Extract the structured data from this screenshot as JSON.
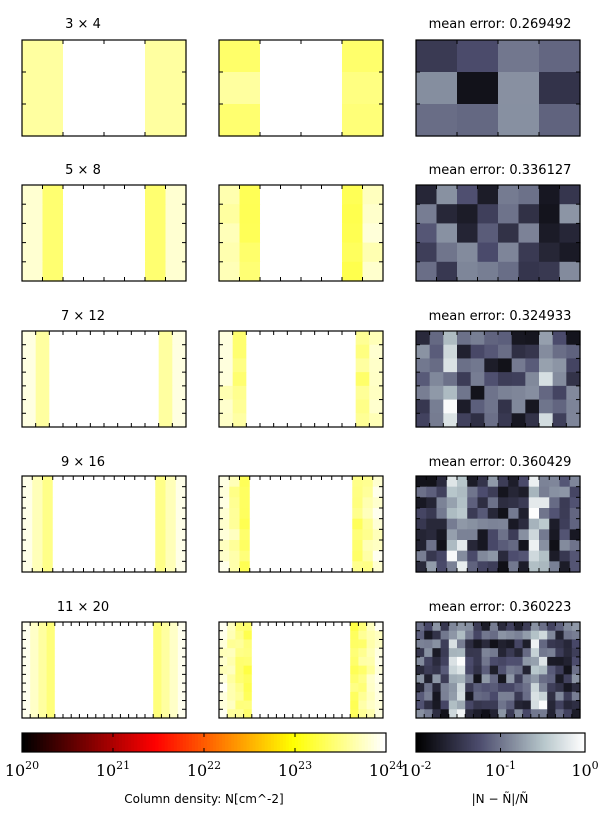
{
  "chart_data": {
    "type": "heatmap",
    "rows": [
      {
        "label": "3 × 4",
        "grid": [
          3,
          4
        ],
        "error_label": "mean error: 0.269492"
      },
      {
        "label": "5 × 8",
        "grid": [
          5,
          8
        ],
        "error_label": "mean error: 0.336127"
      },
      {
        "label": "7 × 12",
        "grid": [
          7,
          12
        ],
        "error_label": "mean error: 0.324933"
      },
      {
        "label": "9 × 16",
        "grid": [
          9,
          16
        ],
        "error_label": "mean error: 0.360429"
      },
      {
        "label": "11 × 20",
        "grid": [
          11,
          20
        ],
        "error_label": "mean error: 0.360223"
      }
    ],
    "colorbars": [
      {
        "colormap": "hot",
        "range": [
          1e+20,
          1e+24
        ],
        "scale": "log",
        "tick_labels": [
          "10^20",
          "10^21",
          "10^22",
          "10^23",
          "10^24"
        ],
        "label": "Column density: N[cm^-2]"
      },
      {
        "colormap": "bone",
        "range": [
          0.01,
          1
        ],
        "scale": "log",
        "tick_labels": [
          "10^-2",
          "10^-1",
          "10^0"
        ],
        "label": "|N − Ñ|/Ñ"
      }
    ]
  }
}
